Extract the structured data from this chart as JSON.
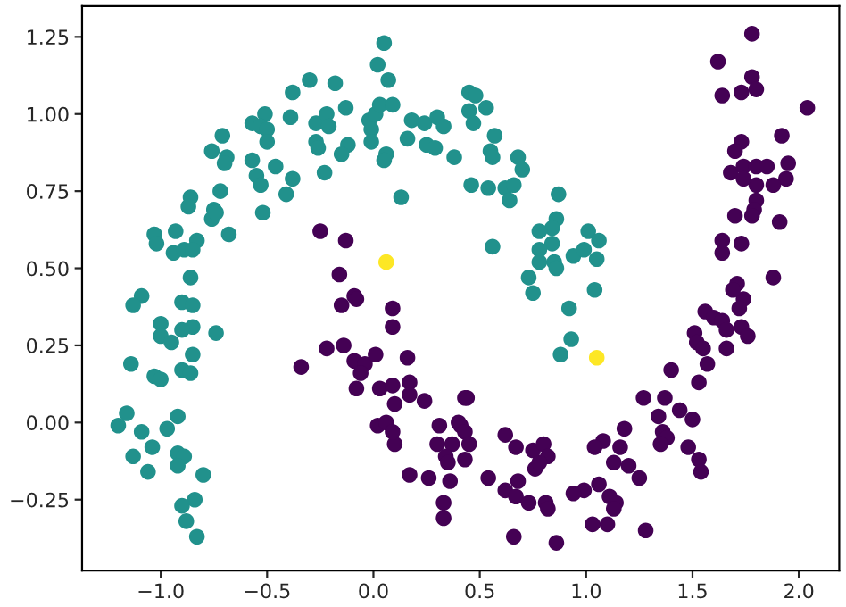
{
  "chart_data": {
    "type": "scatter",
    "marker": "circle",
    "grid": false,
    "xlim": [
      -1.37,
      2.19
    ],
    "ylim": [
      -0.48,
      1.35
    ],
    "xticks": [
      {
        "value": -1.0,
        "label": "−1.0"
      },
      {
        "value": -0.5,
        "label": "−0.5"
      },
      {
        "value": 0.0,
        "label": "0.0"
      },
      {
        "value": 0.5,
        "label": "0.5"
      },
      {
        "value": 1.0,
        "label": "1.0"
      },
      {
        "value": 1.5,
        "label": "1.5"
      },
      {
        "value": 2.0,
        "label": "2.0"
      }
    ],
    "yticks": [
      {
        "value": -0.25,
        "label": "−0.25"
      },
      {
        "value": 0.0,
        "label": "0.00"
      },
      {
        "value": 0.25,
        "label": "0.25"
      },
      {
        "value": 0.5,
        "label": "0.50"
      },
      {
        "value": 0.75,
        "label": "0.75"
      },
      {
        "value": 1.0,
        "label": "1.00"
      },
      {
        "value": 1.25,
        "label": "1.25"
      }
    ],
    "series": [
      {
        "color": "#21918c",
        "x": [
          0.05,
          0.02,
          0.07,
          -0.3,
          -0.18,
          -0.38,
          -0.51,
          -0.57,
          -0.53,
          -0.5,
          -0.5,
          -0.39,
          -0.27,
          -0.22,
          -0.21,
          -0.13,
          -0.27,
          -0.26,
          -0.12,
          -0.15,
          -0.23,
          -0.02,
          0.01,
          0.03,
          0.09,
          -0.01,
          -0.01,
          0.06,
          0.05,
          0.18,
          0.16,
          0.24,
          0.3,
          0.33,
          0.25,
          0.29,
          0.38,
          0.13,
          -0.71,
          -0.76,
          -0.69,
          -0.7,
          -0.57,
          -0.55,
          -0.53,
          -0.46,
          -0.38,
          -0.41,
          -0.52,
          -0.72,
          -0.86,
          -0.87,
          -0.75,
          -0.76,
          -0.74,
          -0.68,
          -1.03,
          -1.02,
          -0.93,
          -0.94,
          -0.89,
          -0.83,
          -0.85,
          -0.86,
          -1.09,
          -1.13,
          -0.9,
          -0.85,
          -1.0,
          -0.85,
          -0.9,
          -0.74,
          -1.0,
          -0.95,
          -1.14,
          -0.85,
          -1.03,
          -1.0,
          -0.9,
          -0.86,
          -1.16,
          -1.2,
          -1.09,
          -0.97,
          -0.92,
          -1.04,
          -1.13,
          -0.92,
          -0.89,
          -0.92,
          -1.06,
          -0.8,
          -0.9,
          -0.84,
          -0.88,
          -0.83,
          0.45,
          0.48,
          0.45,
          0.53,
          0.47,
          0.57,
          0.55,
          0.56,
          0.68,
          0.7,
          0.46,
          0.54,
          0.62,
          0.66,
          0.64,
          0.87,
          0.86,
          0.84,
          0.78,
          0.84,
          0.78,
          0.78,
          0.85,
          0.86,
          0.94,
          0.99,
          1.01,
          1.06,
          1.05,
          0.56,
          0.73,
          0.75,
          1.04,
          0.92,
          0.93,
          0.88
        ],
        "values": [
          1.23,
          1.16,
          1.11,
          1.11,
          1.1,
          1.07,
          1.0,
          0.97,
          0.96,
          0.95,
          0.91,
          0.99,
          0.97,
          1.0,
          0.96,
          1.02,
          0.91,
          0.89,
          0.9,
          0.87,
          0.81,
          0.98,
          1.0,
          1.03,
          1.03,
          0.95,
          0.91,
          0.87,
          0.85,
          0.98,
          0.92,
          0.97,
          0.99,
          0.96,
          0.9,
          0.89,
          0.86,
          0.73,
          0.93,
          0.88,
          0.86,
          0.84,
          0.85,
          0.8,
          0.77,
          0.83,
          0.79,
          0.74,
          0.68,
          0.75,
          0.73,
          0.7,
          0.69,
          0.66,
          0.68,
          0.61,
          0.61,
          0.58,
          0.62,
          0.55,
          0.56,
          0.59,
          0.56,
          0.47,
          0.41,
          0.38,
          0.39,
          0.38,
          0.32,
          0.31,
          0.3,
          0.29,
          0.28,
          0.26,
          0.19,
          0.22,
          0.15,
          0.14,
          0.17,
          0.16,
          0.03,
          -0.01,
          -0.03,
          -0.02,
          0.02,
          -0.08,
          -0.11,
          -0.1,
          -0.11,
          -0.14,
          -0.16,
          -0.17,
          -0.27,
          -0.25,
          -0.32,
          -0.37,
          1.07,
          1.06,
          1.01,
          1.02,
          0.97,
          0.93,
          0.88,
          0.86,
          0.86,
          0.82,
          0.77,
          0.76,
          0.76,
          0.77,
          0.72,
          0.74,
          0.66,
          0.63,
          0.62,
          0.58,
          0.56,
          0.52,
          0.52,
          0.5,
          0.54,
          0.56,
          0.62,
          0.59,
          0.53,
          0.57,
          0.47,
          0.42,
          0.43,
          0.37,
          0.27,
          0.22
        ]
      },
      {
        "color": "#440154",
        "x": [
          -0.25,
          -0.13,
          -0.16,
          -0.09,
          -0.15,
          -0.08,
          0.09,
          0.09,
          -0.22,
          -0.14,
          -0.09,
          -0.04,
          0.01,
          -0.06,
          0.16,
          -0.34,
          -0.08,
          0.03,
          0.09,
          0.1,
          0.17,
          0.17,
          0.24,
          0.02,
          0.06,
          0.1,
          0.09,
          0.31,
          0.3,
          0.37,
          0.34,
          0.35,
          0.17,
          0.26,
          0.36,
          0.33,
          0.33,
          0.41,
          0.43,
          1.78,
          1.62,
          1.78,
          1.8,
          1.73,
          1.64,
          2.04,
          1.92,
          1.73,
          1.7,
          1.68,
          1.74,
          1.8,
          1.85,
          1.95,
          1.94,
          1.88,
          1.8,
          1.74,
          1.8,
          1.79,
          1.7,
          1.78,
          1.91,
          1.64,
          1.73,
          1.64,
          1.71,
          1.88,
          1.74,
          1.69,
          1.72,
          1.56,
          1.6,
          1.64,
          1.51,
          1.73,
          1.76,
          1.66,
          1.52,
          1.55,
          1.66,
          1.57,
          1.53,
          1.4,
          1.27,
          1.37,
          1.44,
          1.34,
          1.5,
          1.36,
          1.38,
          1.35,
          1.48,
          1.53,
          1.54,
          1.18,
          1.16,
          1.08,
          1.04,
          1.13,
          1.2,
          1.25,
          1.06,
          0.99,
          0.94,
          1.11,
          1.14,
          1.13,
          1.1,
          1.03,
          1.28,
          0.62,
          0.67,
          0.75,
          0.8,
          0.82,
          0.76,
          0.78,
          0.54,
          0.68,
          0.62,
          0.67,
          0.73,
          0.81,
          0.82,
          0.66,
          0.86,
          0.44,
          0.4,
          0.43,
          0.45,
          0.43
        ],
        "values": [
          0.62,
          0.59,
          0.48,
          0.41,
          0.38,
          0.4,
          0.37,
          0.31,
          0.24,
          0.25,
          0.2,
          0.19,
          0.22,
          0.16,
          0.21,
          0.18,
          0.11,
          0.11,
          0.12,
          0.06,
          0.13,
          0.09,
          0.07,
          -0.01,
          0.0,
          -0.07,
          -0.03,
          -0.01,
          -0.07,
          -0.07,
          -0.11,
          -0.13,
          -0.17,
          -0.18,
          -0.19,
          -0.26,
          -0.31,
          -0.01,
          0.08,
          1.26,
          1.17,
          1.12,
          1.08,
          1.07,
          1.06,
          1.02,
          0.93,
          0.91,
          0.88,
          0.81,
          0.83,
          0.83,
          0.83,
          0.84,
          0.79,
          0.77,
          0.77,
          0.79,
          0.72,
          0.69,
          0.67,
          0.67,
          0.65,
          0.59,
          0.58,
          0.55,
          0.45,
          0.47,
          0.4,
          0.43,
          0.37,
          0.36,
          0.34,
          0.33,
          0.29,
          0.31,
          0.28,
          0.3,
          0.26,
          0.24,
          0.24,
          0.19,
          0.13,
          0.17,
          0.08,
          0.08,
          0.04,
          0.02,
          0.01,
          -0.03,
          -0.05,
          -0.07,
          -0.08,
          -0.12,
          -0.16,
          -0.02,
          -0.08,
          -0.06,
          -0.08,
          -0.13,
          -0.14,
          -0.18,
          -0.2,
          -0.22,
          -0.23,
          -0.24,
          -0.26,
          -0.28,
          -0.33,
          -0.33,
          -0.35,
          -0.04,
          -0.08,
          -0.09,
          -0.07,
          -0.11,
          -0.15,
          -0.13,
          -0.18,
          -0.19,
          -0.22,
          -0.24,
          -0.26,
          -0.26,
          -0.28,
          -0.37,
          -0.39,
          0.08,
          0.0,
          -0.03,
          -0.07,
          -0.12
        ]
      },
      {
        "color": "#fde725",
        "x": [
          0.06,
          1.05
        ],
        "values": [
          0.52,
          0.21
        ]
      }
    ]
  }
}
